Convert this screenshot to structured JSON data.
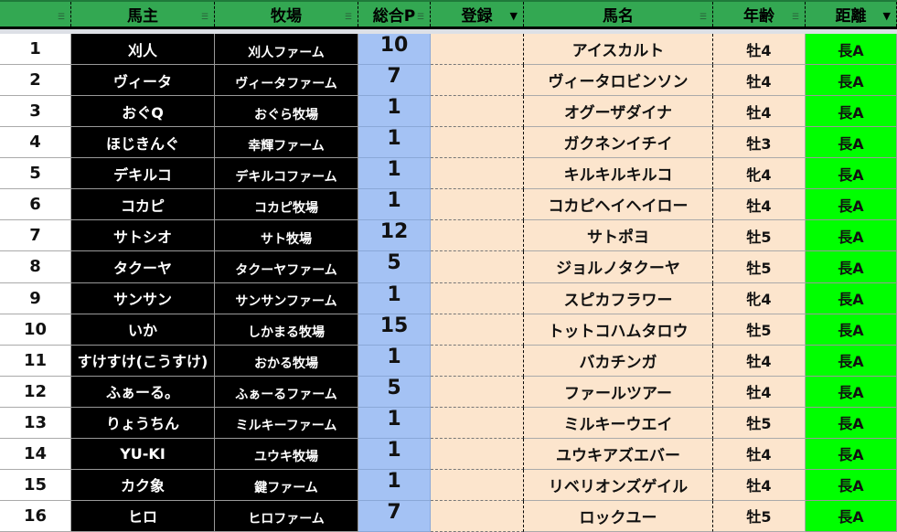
{
  "headers": [
    "",
    "馬主",
    "牧場",
    "総合P",
    "登録",
    "馬名",
    "年齢",
    "距離"
  ],
  "filters_active": [
    false,
    false,
    false,
    false,
    true,
    false,
    false,
    true
  ],
  "colors": {
    "header": "#33a852",
    "owner_bg": "#000000",
    "points_bg": "#a4c2f4",
    "horse_bg": "#fce5cd",
    "distance_bg": "#00ff00"
  },
  "rows": [
    [
      "1",
      "刈人",
      "刈人ファーム",
      "10",
      "",
      "アイスカルト",
      "牡4",
      "長A"
    ],
    [
      "2",
      "ヴィータ",
      "ヴィータファーム",
      "7",
      "",
      "ヴィータロビンソン",
      "牡4",
      "長A"
    ],
    [
      "3",
      "おぐQ",
      "おぐら牧場",
      "1",
      "",
      "オグーザダイナ",
      "牡4",
      "長A"
    ],
    [
      "4",
      "ほじきんぐ",
      "幸輝ファーム",
      "1",
      "",
      "ガクネンイチイ",
      "牡3",
      "長A"
    ],
    [
      "5",
      "デキルコ",
      "デキルコファーム",
      "1",
      "",
      "キルキルキルコ",
      "牝4",
      "長A"
    ],
    [
      "6",
      "コカピ",
      "コカピ牧場",
      "1",
      "",
      "コカピヘイヘイロー",
      "牡4",
      "長A"
    ],
    [
      "7",
      "サトシオ",
      "サト牧場",
      "12",
      "",
      "サトポヨ",
      "牡5",
      "長A"
    ],
    [
      "8",
      "タクーヤ",
      "タクーヤファーム",
      "5",
      "",
      "ジョルノタクーヤ",
      "牡5",
      "長A"
    ],
    [
      "9",
      "サンサン",
      "サンサンファーム",
      "1",
      "",
      "スピカフラワー",
      "牝4",
      "長A"
    ],
    [
      "10",
      "いか",
      "しかまる牧場",
      "15",
      "",
      "トットコハムタロウ",
      "牡5",
      "長A"
    ],
    [
      "11",
      "すけすけ(こうすけ)",
      "おかる牧場",
      "1",
      "",
      "バカチンガ",
      "牡4",
      "長A"
    ],
    [
      "12",
      "ふぁーる。",
      "ふぁーるファーム",
      "5",
      "",
      "ファールツアー",
      "牡4",
      "長A"
    ],
    [
      "13",
      "りょうちん",
      "ミルキーファーム",
      "1",
      "",
      "ミルキーウエイ",
      "牡5",
      "長A"
    ],
    [
      "14",
      "YU-KI",
      "ユウキ牧場",
      "1",
      "",
      "ユウキアズエバー",
      "牡4",
      "長A"
    ],
    [
      "15",
      "カク象",
      "鍵ファーム",
      "1",
      "",
      "リベリオンズゲイル",
      "牡4",
      "長A"
    ],
    [
      "16",
      "ヒロ",
      "ヒロファーム",
      "7",
      "",
      "ロックユー",
      "牡5",
      "長A"
    ]
  ]
}
